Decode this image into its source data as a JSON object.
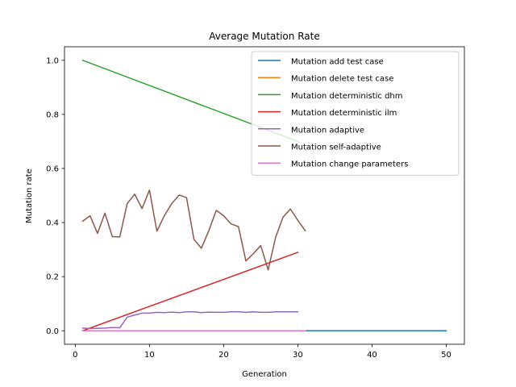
{
  "chart_data": {
    "type": "line",
    "title": "Average Mutation Rate",
    "xlabel": "Generation",
    "ylabel": "Mutation rate",
    "xlim": [
      -1.45,
      52.45
    ],
    "ylim": [
      -0.05,
      1.05
    ],
    "xticks": [
      0,
      10,
      20,
      30,
      40,
      50
    ],
    "yticks": [
      0.0,
      0.2,
      0.4,
      0.6,
      0.8,
      1.0
    ],
    "xtick_labels": [
      "0",
      "10",
      "20",
      "30",
      "40",
      "50"
    ],
    "ytick_labels": [
      "0.0",
      "0.2",
      "0.4",
      "0.6",
      "0.8",
      "1.0"
    ],
    "grid": false,
    "legend_position": "top-right",
    "series": [
      {
        "name": "Mutation add test case",
        "color": "#1f77b4",
        "x": [
          1,
          50
        ],
        "y": [
          0.0,
          0.0
        ]
      },
      {
        "name": "Mutation delete test case",
        "color": "#ff7f0e",
        "x": [
          1,
          30
        ],
        "y": [
          0.0,
          0.0
        ]
      },
      {
        "name": "Mutation deterministic dhm",
        "color": "#2ca02c",
        "x": [
          1,
          30
        ],
        "y": [
          1.0,
          0.7
        ]
      },
      {
        "name": "Mutation deterministic ilm",
        "color": "#d62728",
        "x": [
          1,
          30
        ],
        "y": [
          0.0,
          0.29
        ]
      },
      {
        "name": "Mutation adaptive",
        "color": "#9467bd",
        "x": [
          1,
          2,
          3,
          4,
          5,
          6,
          7,
          8,
          9,
          10,
          11,
          12,
          13,
          14,
          15,
          16,
          17,
          18,
          19,
          20,
          21,
          22,
          23,
          24,
          25,
          26,
          27,
          28,
          29,
          30
        ],
        "y": [
          0.01,
          0.008,
          0.009,
          0.01,
          0.012,
          0.011,
          0.05,
          0.058,
          0.065,
          0.065,
          0.068,
          0.067,
          0.069,
          0.067,
          0.07,
          0.07,
          0.067,
          0.069,
          0.068,
          0.068,
          0.07,
          0.07,
          0.068,
          0.07,
          0.068,
          0.068,
          0.07,
          0.07,
          0.07,
          0.07
        ]
      },
      {
        "name": "Mutation self-adaptive",
        "color": "#8c564b",
        "x": [
          1,
          2,
          3,
          4,
          5,
          6,
          7,
          8,
          9,
          10,
          11,
          12,
          13,
          14,
          15,
          16,
          17,
          18,
          19,
          20,
          21,
          22,
          23,
          24,
          25,
          26,
          27,
          28,
          29,
          30,
          31
        ],
        "y": [
          0.405,
          0.425,
          0.36,
          0.435,
          0.348,
          0.347,
          0.47,
          0.505,
          0.452,
          0.52,
          0.368,
          0.425,
          0.47,
          0.502,
          0.492,
          0.338,
          0.305,
          0.37,
          0.445,
          0.425,
          0.395,
          0.385,
          0.258,
          0.285,
          0.315,
          0.225,
          0.345,
          0.42,
          0.45,
          0.408,
          0.37
        ]
      },
      {
        "name": "Mutation change parameters",
        "color": "#e377c2",
        "x": [
          1,
          31
        ],
        "y": [
          0.0,
          0.0
        ]
      }
    ]
  }
}
